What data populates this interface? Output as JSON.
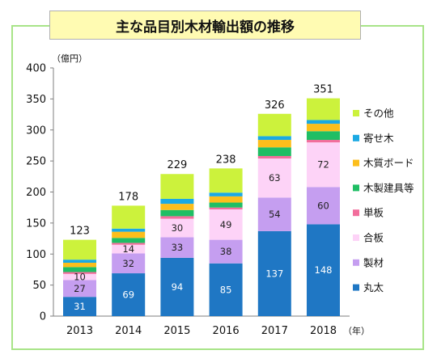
{
  "chart_data": {
    "type": "bar",
    "stacked": true,
    "title": "主な品目別木材輸出額の推移",
    "ylabel": "（億円）",
    "xlabel": "（年）",
    "ylim": [
      0,
      400
    ],
    "yticks": [
      0,
      50,
      100,
      150,
      200,
      250,
      300,
      350,
      400
    ],
    "categories": [
      "2013",
      "2014",
      "2015",
      "2016",
      "2017",
      "2018"
    ],
    "totals": [
      123,
      178,
      229,
      238,
      326,
      351
    ],
    "legend_position": "right",
    "grid": false,
    "series": [
      {
        "name": "丸太",
        "color": "#1f77c4",
        "label_color": "#ffffff",
        "values": [
          31,
          69,
          94,
          85,
          137,
          148
        ],
        "labeled": [
          true,
          true,
          true,
          true,
          true,
          true
        ]
      },
      {
        "name": "製材",
        "color": "#c59ef0",
        "label_color": "#222222",
        "values": [
          27,
          32,
          33,
          38,
          54,
          60
        ],
        "labeled": [
          true,
          true,
          true,
          true,
          true,
          true
        ]
      },
      {
        "name": "合板",
        "color": "#fdd3f7",
        "label_color": "#222222",
        "values": [
          10,
          14,
          30,
          49,
          63,
          72
        ],
        "labeled": [
          true,
          true,
          true,
          true,
          true,
          true
        ]
      },
      {
        "name": "単板",
        "color": "#f26e9c",
        "label_color": "#222222",
        "values": [
          3,
          3,
          4,
          3,
          4,
          4
        ],
        "labeled": [
          false,
          false,
          false,
          false,
          false,
          false
        ]
      },
      {
        "name": "木製建具等",
        "color": "#1fbe64",
        "label_color": "#222222",
        "values": [
          8,
          8,
          10,
          8,
          14,
          14
        ],
        "labeled": [
          false,
          false,
          false,
          false,
          false,
          false
        ]
      },
      {
        "name": "木質ボード",
        "color": "#fcbe1c",
        "label_color": "#222222",
        "values": [
          7,
          10,
          10,
          10,
          12,
          12
        ],
        "labeled": [
          false,
          false,
          false,
          false,
          false,
          false
        ]
      },
      {
        "name": "寄せ木",
        "color": "#1ba9e3",
        "label_color": "#222222",
        "values": [
          5,
          5,
          8,
          6,
          6,
          6
        ],
        "labeled": [
          false,
          false,
          false,
          false,
          false,
          false
        ]
      },
      {
        "name": "その他",
        "color": "#ccf23c",
        "label_color": "#222222",
        "values": [
          32,
          37,
          40,
          39,
          36,
          35
        ],
        "labeled": [
          false,
          false,
          false,
          false,
          false,
          false
        ]
      }
    ]
  }
}
